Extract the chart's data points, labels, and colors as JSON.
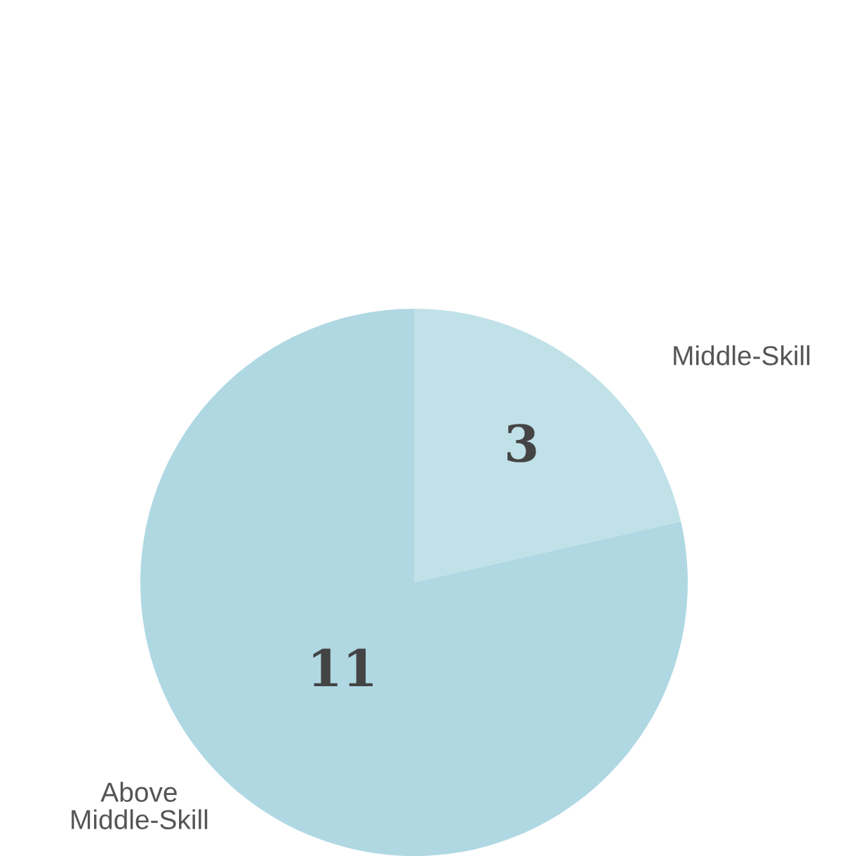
{
  "chart_data": {
    "type": "pie",
    "categories": [
      "Middle-Skill",
      "Above\nMiddle-Skill"
    ],
    "values": [
      3,
      11
    ],
    "colors": [
      "#c0e1e8",
      "#afd8e3"
    ],
    "data_labels": true
  }
}
